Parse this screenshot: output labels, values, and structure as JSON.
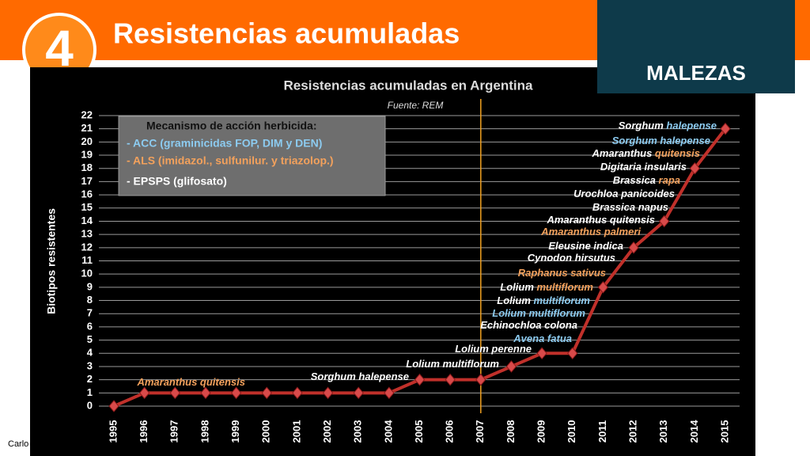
{
  "header": {
    "number": "4",
    "title": "Resistencias acumuladas",
    "badge": "MALEZAS",
    "footer": "Carlo"
  },
  "chart_data": {
    "type": "line",
    "title": "Resistencias acumuladas en Argentina",
    "subtitle": "Fuente: REM",
    "ylabel": "Biotipos resistentes",
    "categories": [
      "1995",
      "1996",
      "1997",
      "1998",
      "1999",
      "2000",
      "2001",
      "2002",
      "2003",
      "2004",
      "2005",
      "2006",
      "2007",
      "2008",
      "2009",
      "2010",
      "2011",
      "2012",
      "2013",
      "2014",
      "2015"
    ],
    "values": [
      0,
      1,
      1,
      1,
      1,
      1,
      1,
      1,
      1,
      1,
      2,
      2,
      2,
      3,
      4,
      4,
      9,
      12,
      14,
      18,
      21
    ],
    "color": "#c0302a",
    "ylim": [
      0,
      22
    ],
    "yticks": [
      0,
      1,
      2,
      3,
      4,
      5,
      6,
      7,
      8,
      9,
      10,
      11,
      12,
      13,
      14,
      15,
      16,
      17,
      18,
      19,
      20,
      21,
      22
    ],
    "grid": true,
    "marker_line_category": "2007",
    "legend": {
      "title": "Mecanismo de acción herbicida:",
      "entries": [
        {
          "text": "- ACC (graminicidas FOP, DIM y DEN)",
          "color": "#8ccbf0"
        },
        {
          "text": "- ALS (imidazol., sulfunilur. y triazolop.)",
          "color": "#f3a15c"
        },
        {
          "text": "- EPSPS (glifosato)",
          "color": "#ffffff"
        }
      ]
    },
    "annotations": [
      [
        {
          "text": "Amaranthus quitensis",
          "color": "#f3a15c"
        }
      ],
      [
        {
          "text": "Sorghum halepense",
          "color": "#ffffff"
        }
      ],
      [
        {
          "text": "Lolium multiflorum",
          "color": "#ffffff"
        }
      ],
      [
        {
          "text": "Lolium perenne",
          "color": "#ffffff"
        }
      ],
      [
        {
          "text": "Avena fatua",
          "color": "#8ccbf0"
        }
      ],
      [
        {
          "text": "Echinochloa colona",
          "color": "#ffffff"
        }
      ],
      [
        {
          "text": "Lolium multiflorum",
          "color": "#8ccbf0"
        }
      ],
      [
        {
          "text": "Lolium ",
          "color": "#ffffff"
        },
        {
          "text": "multiflorum",
          "color": "#8ccbf0"
        }
      ],
      [
        {
          "text": "Lolium ",
          "color": "#ffffff"
        },
        {
          "text": "multiflorum",
          "color": "#f3a15c"
        }
      ],
      [
        {
          "text": "Raphanus sativus",
          "color": "#f3a15c"
        }
      ],
      [
        {
          "text": "Cynodon hirsutus",
          "color": "#ffffff"
        }
      ],
      [
        {
          "text": "Eleusine indica",
          "color": "#ffffff"
        }
      ],
      [
        {
          "text": "Amaranthus palmeri",
          "color": "#f3a15c"
        }
      ],
      [
        {
          "text": "Amaranthus quitensis",
          "color": "#ffffff"
        }
      ],
      [
        {
          "text": "Brassica napus",
          "color": "#ffffff"
        }
      ],
      [
        {
          "text": "Urochloa panicoides",
          "color": "#ffffff"
        }
      ],
      [
        {
          "text": "Brassica ",
          "color": "#ffffff"
        },
        {
          "text": "rapa",
          "color": "#f3a15c"
        }
      ],
      [
        {
          "text": "Digitaria insularis",
          "color": "#ffffff"
        }
      ],
      [
        {
          "text": "Amaranthus ",
          "color": "#ffffff"
        },
        {
          "text": "quitensis",
          "color": "#f3a15c"
        }
      ],
      [
        {
          "text": "Sorghum halepense",
          "color": "#8ccbf0"
        }
      ],
      [
        {
          "text": "Sorghum ",
          "color": "#ffffff"
        },
        {
          "text": "halepense",
          "color": "#8ccbf0"
        }
      ]
    ]
  }
}
